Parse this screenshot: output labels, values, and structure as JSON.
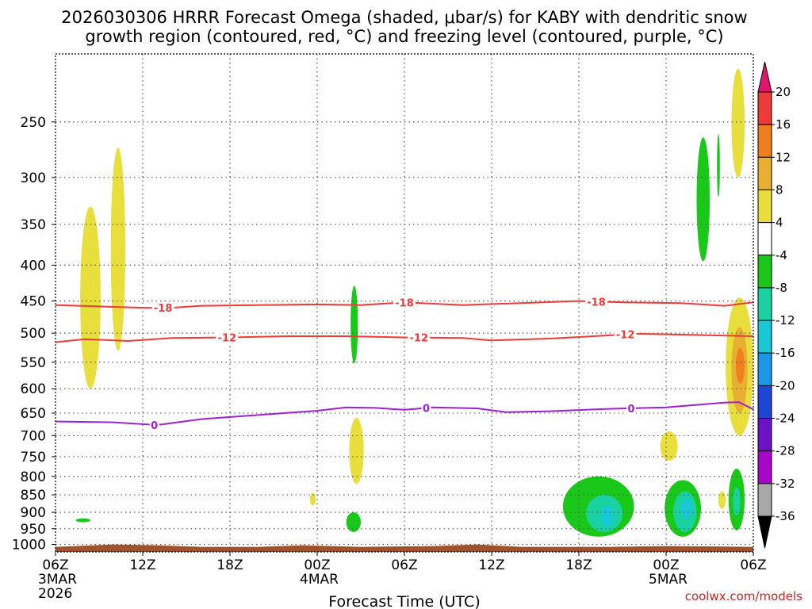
{
  "title": {
    "line1": "2026030306 HRRR Forecast Omega (shaded, μbar/s) for KABY with dendritic snow",
    "line2": "growth region (contoured, red, °C) and freezing level (contoured, purple, °C)"
  },
  "credit": "coolwx.com/models",
  "chart_data": {
    "type": "heatmap",
    "xlabel": "Forecast Time (UTC)",
    "x_unit": "hours from 2026-03-03 06Z",
    "xlim": [
      0,
      48
    ],
    "x_ticks": [
      {
        "x": 0,
        "label": "06Z",
        "sub": "3MAR",
        "sub2": "2026"
      },
      {
        "x": 6,
        "label": "12Z",
        "sub": "",
        "sub2": ""
      },
      {
        "x": 12,
        "label": "18Z",
        "sub": "",
        "sub2": ""
      },
      {
        "x": 18,
        "label": "00Z",
        "sub": "4MAR",
        "sub2": ""
      },
      {
        "x": 24,
        "label": "06Z",
        "sub": "",
        "sub2": ""
      },
      {
        "x": 30,
        "label": "12Z",
        "sub": "",
        "sub2": ""
      },
      {
        "x": 36,
        "label": "18Z",
        "sub": "",
        "sub2": ""
      },
      {
        "x": 42,
        "label": "00Z",
        "sub": "5MAR",
        "sub2": ""
      },
      {
        "x": 48,
        "label": "06Z",
        "sub": "",
        "sub2": ""
      }
    ],
    "y_unit": "pressure (hPa)",
    "ylim": [
      1025,
      200
    ],
    "y_ticks": [
      250,
      300,
      350,
      400,
      450,
      500,
      550,
      600,
      650,
      700,
      750,
      800,
      850,
      900,
      950,
      1000
    ],
    "grid": true,
    "colorbar": {
      "labels": [
        "20",
        "16",
        "12",
        "8",
        "4",
        "-4",
        "-8",
        "-12",
        "-16",
        "-20",
        "-24",
        "-28",
        "-32",
        "-36"
      ],
      "colors": [
        "#e0166e",
        "#ee3a3a",
        "#f0801e",
        "#e8b030",
        "#e8de3c",
        "#ffffff",
        "#1ac81a",
        "#1ad2a0",
        "#18c8d6",
        "#1e96e6",
        "#1e46d6",
        "#6e12c8",
        "#a806c8",
        "#a8a8a8",
        "#000000"
      ]
    },
    "contours": [
      {
        "name": "dgz-top",
        "level_label": "-18",
        "color": "#ee3a3a",
        "points": [
          [
            0,
            456
          ],
          [
            3,
            458
          ],
          [
            6,
            460
          ],
          [
            8,
            460
          ],
          [
            10,
            457
          ],
          [
            14,
            456
          ],
          [
            18,
            455
          ],
          [
            21,
            456
          ],
          [
            24,
            452
          ],
          [
            28,
            456
          ],
          [
            32,
            453
          ],
          [
            36,
            450
          ],
          [
            39,
            452
          ],
          [
            43,
            453
          ],
          [
            46,
            457
          ],
          [
            48,
            452
          ]
        ],
        "labels_at": [
          7.4,
          24.0,
          37.2
        ]
      },
      {
        "name": "dgz-bottom",
        "level_label": "-12",
        "color": "#ee3a3a",
        "points": [
          [
            0,
            515
          ],
          [
            2,
            510
          ],
          [
            5,
            513
          ],
          [
            8,
            508
          ],
          [
            12,
            507
          ],
          [
            16,
            505
          ],
          [
            20,
            505
          ],
          [
            24,
            507
          ],
          [
            28,
            508
          ],
          [
            30,
            512
          ],
          [
            34,
            509
          ],
          [
            37,
            505
          ],
          [
            40,
            501
          ],
          [
            44,
            503
          ],
          [
            48,
            505
          ]
        ],
        "labels_at": [
          11.8,
          25.0,
          39.2
        ]
      },
      {
        "name": "freezing-level",
        "level_label": "0",
        "color": "#a020d0",
        "points": [
          [
            0,
            668
          ],
          [
            4,
            670
          ],
          [
            6,
            674
          ],
          [
            7,
            676
          ],
          [
            10,
            663
          ],
          [
            14,
            654
          ],
          [
            18,
            645
          ],
          [
            20,
            638
          ],
          [
            22,
            639
          ],
          [
            24,
            643
          ],
          [
            26,
            638
          ],
          [
            29,
            640
          ],
          [
            31,
            648
          ],
          [
            34,
            646
          ],
          [
            38,
            641
          ],
          [
            42,
            638
          ],
          [
            46,
            628
          ],
          [
            47,
            627
          ],
          [
            48,
            642
          ]
        ],
        "labels_at": [
          6.8,
          25.5,
          39.6
        ]
      }
    ],
    "shaded": [
      {
        "v": 4,
        "x": [
          1.7,
          3.1
        ],
        "p": [
          330,
          600
        ]
      },
      {
        "v": 4,
        "x": [
          3.8,
          4.8
        ],
        "p": [
          272,
          530
        ]
      },
      {
        "v": 4,
        "x": [
          17.5,
          17.9
        ],
        "p": [
          845,
          880
        ]
      },
      {
        "v": 4,
        "x": [
          20.2,
          21.2
        ],
        "p": [
          660,
          820
        ]
      },
      {
        "v": 4,
        "x": [
          41.6,
          42.8
        ],
        "p": [
          690,
          760
        ]
      },
      {
        "v": 4,
        "x": [
          45.6,
          46.1
        ],
        "p": [
          840,
          890
        ]
      },
      {
        "v": 4,
        "x": [
          46.5,
          47.4
        ],
        "p": [
          210,
          300
        ]
      },
      {
        "v": 4,
        "x": [
          46.1,
          48.0
        ],
        "p": [
          445,
          700
        ]
      },
      {
        "v": 8,
        "x": [
          46.5,
          47.6
        ],
        "p": [
          490,
          650
        ]
      },
      {
        "v": 12,
        "x": [
          46.8,
          47.4
        ],
        "p": [
          525,
          590
        ]
      },
      {
        "v": -4,
        "x": [
          1.4,
          2.4
        ],
        "p": [
          918,
          930
        ]
      },
      {
        "v": -4,
        "x": [
          20.3,
          20.8
        ],
        "p": [
          428,
          552
        ]
      },
      {
        "v": -4,
        "x": [
          20.0,
          21.0
        ],
        "p": [
          900,
          960
        ]
      },
      {
        "v": -4,
        "x": [
          34.9,
          39.8
        ],
        "p": [
          800,
          975
        ]
      },
      {
        "v": -4,
        "x": [
          41.9,
          44.4
        ],
        "p": [
          810,
          975
        ]
      },
      {
        "v": -4,
        "x": [
          44.1,
          45.0
        ],
        "p": [
          263,
          395
        ]
      },
      {
        "v": -4,
        "x": [
          45.5,
          45.7
        ],
        "p": [
          260,
          320
        ]
      },
      {
        "v": -4,
        "x": [
          46.3,
          47.4
        ],
        "p": [
          780,
          955
        ]
      },
      {
        "v": -8,
        "x": [
          36.5,
          39.0
        ],
        "p": [
          850,
          960
        ]
      },
      {
        "v": -8,
        "x": [
          42.5,
          44.1
        ],
        "p": [
          840,
          960
        ]
      },
      {
        "v": -8,
        "x": [
          46.6,
          47.1
        ],
        "p": [
          830,
          910
        ]
      },
      {
        "v": -12,
        "x": [
          37.5,
          38.4
        ],
        "p": [
          880,
          945
        ]
      },
      {
        "v": -12,
        "x": [
          43.0,
          43.8
        ],
        "p": [
          860,
          920
        ]
      }
    ],
    "terrain": {
      "color": "#a0522d",
      "p_top": 1008
    }
  }
}
